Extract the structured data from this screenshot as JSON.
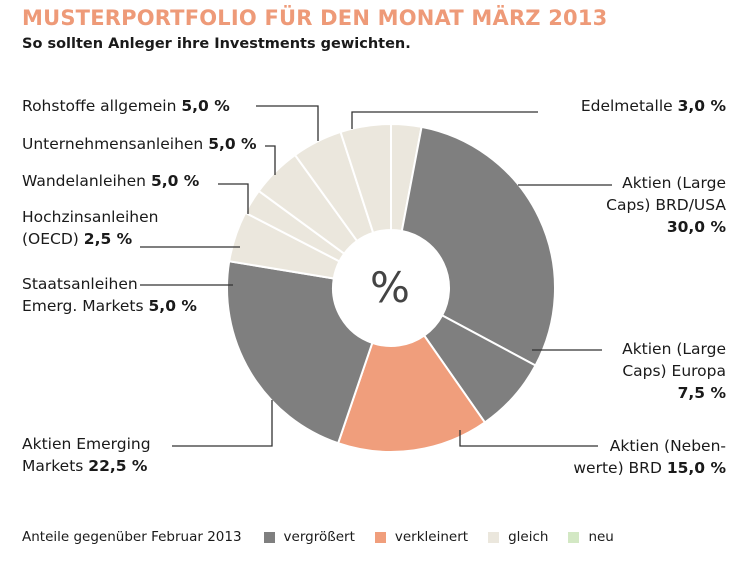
{
  "header": {
    "title": "MUSTERPORTFOLIO FÜR DEN MONAT MÄRZ 2013",
    "subtitle": "So sollten Anleger ihre Investments gewichten."
  },
  "center_label": "%",
  "chart_data": {
    "type": "pie",
    "title": "MUSTERPORTFOLIO FÜR DEN MONAT MÄRZ 2013",
    "subtitle": "So sollten Anleger ihre Investments gewichten.",
    "donut": true,
    "slices": [
      {
        "label": "Edelmetalle",
        "value": 3.0,
        "value_label": "3,0 %",
        "change": "gleich"
      },
      {
        "label": "Aktien (Large Caps) BRD/USA",
        "value": 30.0,
        "value_label": "30,0 %",
        "change": "vergrößert"
      },
      {
        "label": "Aktien (Large Caps) Europa",
        "value": 7.5,
        "value_label": "7,5 %",
        "change": "vergrößert"
      },
      {
        "label": "Aktien (Nebenwerte) BRD",
        "value": 15.0,
        "value_label": "15,0 %",
        "change": "verkleinert"
      },
      {
        "label": "Aktien Emerging Markets",
        "value": 22.5,
        "value_label": "22,5 %",
        "change": "vergrößert"
      },
      {
        "label": "Staatsanleihen Emerg. Markets",
        "value": 5.0,
        "value_label": "5,0 %",
        "change": "gleich"
      },
      {
        "label": "Hochzinsanleihen (OECD)",
        "value": 2.5,
        "value_label": "2,5 %",
        "change": "gleich"
      },
      {
        "label": "Wandelanleihen",
        "value": 5.0,
        "value_label": "5,0 %",
        "change": "gleich"
      },
      {
        "label": "Unternehmensanleihen",
        "value": 5.0,
        "value_label": "5,0 %",
        "change": "gleich"
      },
      {
        "label": "Rohstoffe allgemein",
        "value": 5.0,
        "value_label": "5,0 %",
        "change": "gleich"
      }
    ],
    "legend": {
      "caption": "Anteile gegenüber Februar 2013",
      "placement": "bottom",
      "items": [
        {
          "key": "vergrößert",
          "label": "vergrößert",
          "color": "#7f7f7f"
        },
        {
          "key": "verkleinert",
          "label": "verkleinert",
          "color": "#f09e7c"
        },
        {
          "key": "gleich",
          "label": "gleich",
          "color": "#ebe7dd"
        },
        {
          "key": "neu",
          "label": "neu",
          "color": "#d3e8c4"
        }
      ]
    }
  },
  "labels": {
    "edelmetalle": {
      "lines": [
        "Edelmetalle"
      ],
      "value": "3,0 %"
    },
    "large_brd": {
      "lines": [
        "Aktien (Large",
        "Caps) BRD/USA"
      ],
      "value": "30,0 %"
    },
    "large_eu": {
      "lines": [
        "Aktien (Large",
        "Caps) Europa"
      ],
      "value": "7,5 %"
    },
    "neben": {
      "lines": [
        "Aktien (Neben-",
        "werte) BRD"
      ],
      "value": "15,0 %"
    },
    "emerging": {
      "lines": [
        "Aktien Emerging",
        "Markets"
      ],
      "value": "22,5 %"
    },
    "staats": {
      "lines": [
        "Staatsanleihen",
        "Emerg. Markets"
      ],
      "value": "5,0 %"
    },
    "hochzins": {
      "lines": [
        "Hochzinsanleihen",
        "(OECD)"
      ],
      "value": "2,5 %"
    },
    "wandel": {
      "lines": [
        "Wandelanleihen"
      ],
      "value": "5,0 %"
    },
    "unternehmen": {
      "lines": [
        "Unternehmensanleihen"
      ],
      "value": "5,0 %"
    },
    "rohstoffe": {
      "lines": [
        "Rohstoffe allgemein"
      ],
      "value": "5,0 %"
    }
  }
}
